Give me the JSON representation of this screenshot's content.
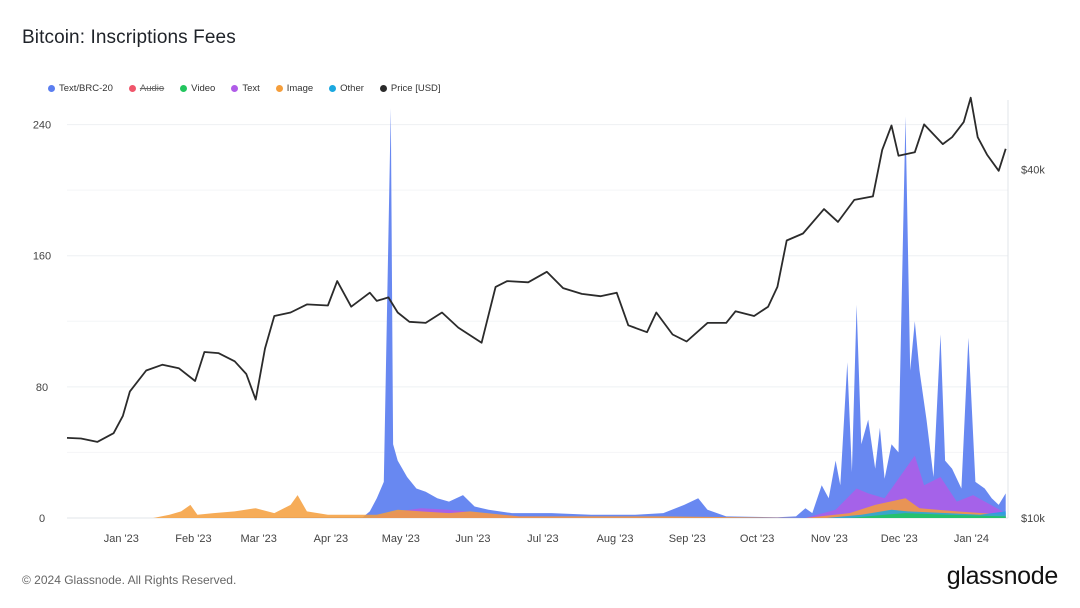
{
  "title": "Bitcoin: Inscriptions Fees",
  "legend": [
    {
      "label": "Text/BRC-20",
      "color": "#5b7ef0",
      "hidden": false
    },
    {
      "label": "Audio",
      "color": "#f0566b",
      "hidden": true
    },
    {
      "label": "Video",
      "color": "#22c55e",
      "hidden": false
    },
    {
      "label": "Text",
      "color": "#b05ce8",
      "hidden": false
    },
    {
      "label": "Image",
      "color": "#f59e3b",
      "hidden": false
    },
    {
      "label": "Other",
      "color": "#1ba8e0",
      "hidden": false
    },
    {
      "label": "Price [USD]",
      "color": "#2b2b2b",
      "hidden": false
    }
  ],
  "footer": "© 2024 Glassnode. All Rights Reserved.",
  "brand": "glassnode",
  "chart_data": {
    "type": "area",
    "y_left_ticks": [
      "0",
      "80",
      "160",
      "240"
    ],
    "y_right_ticks": [
      "$10k",
      "$40k"
    ],
    "x_ticks": [
      "Jan '23",
      "Feb '23",
      "Mar '23",
      "Apr '23",
      "May '23",
      "Jun '23",
      "Jul '23",
      "Aug '23",
      "Sep '23",
      "Oct '23",
      "Nov '23",
      "Dec '23",
      "Jan '24"
    ],
    "ylim_left": [
      0,
      255
    ],
    "ylim_right": [
      10000,
      46000
    ],
    "grid": true,
    "legend_position": "top-left",
    "x_start": "2022-12-19",
    "series": [
      {
        "name": "Price [USD]",
        "axis": "right",
        "points": [
          [
            "2022-12-19",
            16900
          ],
          [
            "2022-12-25",
            16850
          ],
          [
            "2023-01-01",
            16550
          ],
          [
            "2023-01-08",
            17300
          ],
          [
            "2023-01-12",
            18800
          ],
          [
            "2023-01-15",
            20900
          ],
          [
            "2023-01-22",
            22700
          ],
          [
            "2023-01-29",
            23200
          ],
          [
            "2023-02-05",
            22900
          ],
          [
            "2023-02-12",
            21800
          ],
          [
            "2023-02-16",
            24300
          ],
          [
            "2023-02-22",
            24200
          ],
          [
            "2023-03-01",
            23500
          ],
          [
            "2023-03-06",
            22400
          ],
          [
            "2023-03-10",
            20200
          ],
          [
            "2023-03-14",
            24600
          ],
          [
            "2023-03-18",
            27400
          ],
          [
            "2023-03-25",
            27700
          ],
          [
            "2023-04-01",
            28400
          ],
          [
            "2023-04-10",
            28300
          ],
          [
            "2023-04-14",
            30400
          ],
          [
            "2023-04-20",
            28200
          ],
          [
            "2023-04-28",
            29400
          ],
          [
            "2023-05-01",
            28700
          ],
          [
            "2023-05-06",
            29000
          ],
          [
            "2023-05-10",
            27700
          ],
          [
            "2023-05-15",
            26900
          ],
          [
            "2023-05-22",
            26800
          ],
          [
            "2023-05-29",
            27700
          ],
          [
            "2023-06-05",
            26400
          ],
          [
            "2023-06-15",
            25100
          ],
          [
            "2023-06-21",
            29900
          ],
          [
            "2023-06-26",
            30400
          ],
          [
            "2023-07-05",
            30300
          ],
          [
            "2023-07-13",
            31200
          ],
          [
            "2023-07-20",
            29800
          ],
          [
            "2023-07-28",
            29300
          ],
          [
            "2023-08-05",
            29100
          ],
          [
            "2023-08-12",
            29400
          ],
          [
            "2023-08-17",
            26600
          ],
          [
            "2023-08-25",
            26000
          ],
          [
            "2023-08-29",
            27700
          ],
          [
            "2023-09-05",
            25800
          ],
          [
            "2023-09-11",
            25200
          ],
          [
            "2023-09-20",
            26800
          ],
          [
            "2023-09-28",
            26800
          ],
          [
            "2023-10-02",
            27800
          ],
          [
            "2023-10-10",
            27400
          ],
          [
            "2023-10-16",
            28200
          ],
          [
            "2023-10-20",
            29900
          ],
          [
            "2023-10-24",
            33900
          ],
          [
            "2023-10-31",
            34500
          ],
          [
            "2023-11-09",
            36600
          ],
          [
            "2023-11-15",
            35500
          ],
          [
            "2023-11-22",
            37400
          ],
          [
            "2023-11-30",
            37700
          ],
          [
            "2023-12-04",
            41700
          ],
          [
            "2023-12-08",
            43800
          ],
          [
            "2023-12-11",
            41200
          ],
          [
            "2023-12-18",
            41500
          ],
          [
            "2023-12-22",
            43900
          ],
          [
            "2023-12-30",
            42200
          ],
          [
            "2024-01-03",
            42800
          ],
          [
            "2024-01-08",
            44100
          ],
          [
            "2024-01-11",
            46200
          ],
          [
            "2024-01-14",
            42800
          ],
          [
            "2024-01-18",
            41300
          ],
          [
            "2024-01-23",
            39900
          ],
          [
            "2024-01-26",
            41800
          ]
        ]
      },
      {
        "name": "Text/BRC-20",
        "axis": "left",
        "points": [
          [
            "2022-12-19",
            0
          ],
          [
            "2023-02-15",
            0
          ],
          [
            "2023-04-25",
            0.5
          ],
          [
            "2023-04-28",
            4
          ],
          [
            "2023-05-01",
            12
          ],
          [
            "2023-05-04",
            22
          ],
          [
            "2023-05-07",
            250
          ],
          [
            "2023-05-08",
            45
          ],
          [
            "2023-05-10",
            35
          ],
          [
            "2023-05-14",
            25
          ],
          [
            "2023-05-18",
            18
          ],
          [
            "2023-05-22",
            16
          ],
          [
            "2023-05-27",
            12
          ],
          [
            "2023-06-01",
            10
          ],
          [
            "2023-06-07",
            14
          ],
          [
            "2023-06-12",
            7
          ],
          [
            "2023-06-18",
            5
          ],
          [
            "2023-06-28",
            3
          ],
          [
            "2023-07-15",
            3
          ],
          [
            "2023-08-01",
            2
          ],
          [
            "2023-08-20",
            2
          ],
          [
            "2023-09-01",
            3
          ],
          [
            "2023-09-10",
            8
          ],
          [
            "2023-09-16",
            12
          ],
          [
            "2023-09-20",
            5
          ],
          [
            "2023-09-28",
            1
          ],
          [
            "2023-10-20",
            0.5
          ],
          [
            "2023-10-28",
            1
          ],
          [
            "2023-11-01",
            6
          ],
          [
            "2023-11-04",
            3
          ],
          [
            "2023-11-08",
            20
          ],
          [
            "2023-11-11",
            12
          ],
          [
            "2023-11-14",
            35
          ],
          [
            "2023-11-16",
            20
          ],
          [
            "2023-11-19",
            95
          ],
          [
            "2023-11-21",
            28
          ],
          [
            "2023-11-23",
            130
          ],
          [
            "2023-11-25",
            45
          ],
          [
            "2023-11-28",
            60
          ],
          [
            "2023-12-01",
            30
          ],
          [
            "2023-12-03",
            55
          ],
          [
            "2023-12-05",
            24
          ],
          [
            "2023-12-08",
            45
          ],
          [
            "2023-12-11",
            40
          ],
          [
            "2023-12-14",
            245
          ],
          [
            "2023-12-16",
            90
          ],
          [
            "2023-12-18",
            120
          ],
          [
            "2023-12-20",
            90
          ],
          [
            "2023-12-23",
            60
          ],
          [
            "2023-12-26",
            25
          ],
          [
            "2023-12-29",
            112
          ],
          [
            "2023-12-31",
            35
          ],
          [
            "2024-01-03",
            30
          ],
          [
            "2024-01-07",
            18
          ],
          [
            "2024-01-10",
            110
          ],
          [
            "2024-01-13",
            22
          ],
          [
            "2024-01-17",
            18
          ],
          [
            "2024-01-20",
            12
          ],
          [
            "2024-01-23",
            8
          ],
          [
            "2024-01-26",
            15
          ]
        ]
      },
      {
        "name": "Text",
        "axis": "left",
        "points": [
          [
            "2022-12-19",
            0
          ],
          [
            "2023-04-28",
            0
          ],
          [
            "2023-05-10",
            4
          ],
          [
            "2023-05-20",
            6
          ],
          [
            "2023-06-01",
            5
          ],
          [
            "2023-06-15",
            3
          ],
          [
            "2023-07-01",
            1
          ],
          [
            "2023-11-01",
            0
          ],
          [
            "2023-11-14",
            5
          ],
          [
            "2023-11-23",
            18
          ],
          [
            "2023-11-28",
            15
          ],
          [
            "2023-12-05",
            12
          ],
          [
            "2023-12-14",
            30
          ],
          [
            "2023-12-18",
            38
          ],
          [
            "2023-12-22",
            20
          ],
          [
            "2023-12-29",
            25
          ],
          [
            "2024-01-05",
            10
          ],
          [
            "2024-01-12",
            14
          ],
          [
            "2024-01-26",
            3
          ]
        ]
      },
      {
        "name": "Image",
        "axis": "left",
        "points": [
          [
            "2022-12-19",
            0
          ],
          [
            "2023-01-25",
            0
          ],
          [
            "2023-02-01",
            2
          ],
          [
            "2023-02-06",
            4
          ],
          [
            "2023-02-10",
            8
          ],
          [
            "2023-02-13",
            2
          ],
          [
            "2023-02-20",
            3
          ],
          [
            "2023-03-01",
            4
          ],
          [
            "2023-03-10",
            6
          ],
          [
            "2023-03-18",
            3
          ],
          [
            "2023-03-25",
            8
          ],
          [
            "2023-03-28",
            14
          ],
          [
            "2023-04-01",
            4
          ],
          [
            "2023-04-10",
            2
          ],
          [
            "2023-04-20",
            2
          ],
          [
            "2023-05-01",
            2
          ],
          [
            "2023-05-10",
            5
          ],
          [
            "2023-05-20",
            4
          ],
          [
            "2023-06-01",
            3
          ],
          [
            "2023-06-10",
            4
          ],
          [
            "2023-07-01",
            1
          ],
          [
            "2023-09-01",
            1
          ],
          [
            "2023-11-01",
            0
          ],
          [
            "2023-11-20",
            3
          ],
          [
            "2023-12-01",
            8
          ],
          [
            "2023-12-14",
            12
          ],
          [
            "2023-12-20",
            6
          ],
          [
            "2024-01-05",
            4
          ],
          [
            "2024-01-26",
            2
          ]
        ]
      },
      {
        "name": "Other",
        "axis": "left",
        "points": [
          [
            "2022-12-19",
            0
          ],
          [
            "2023-11-10",
            0
          ],
          [
            "2023-11-25",
            2
          ],
          [
            "2023-12-08",
            5
          ],
          [
            "2023-12-15",
            4
          ],
          [
            "2024-01-01",
            3
          ],
          [
            "2024-01-15",
            2
          ],
          [
            "2024-01-26",
            4
          ]
        ]
      },
      {
        "name": "Video",
        "axis": "left",
        "points": [
          [
            "2022-12-19",
            0
          ],
          [
            "2023-11-20",
            0
          ],
          [
            "2023-12-05",
            2
          ],
          [
            "2023-12-14",
            3
          ],
          [
            "2024-01-01",
            2
          ],
          [
            "2024-01-26",
            1
          ]
        ]
      }
    ]
  }
}
